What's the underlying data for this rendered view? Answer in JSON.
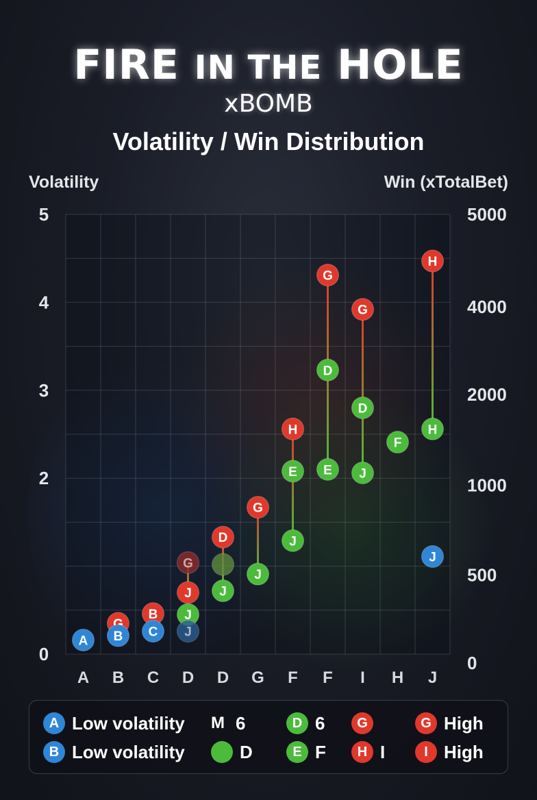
{
  "header": {
    "title_a": "FIRE",
    "title_b": "IN THE",
    "title_c": "HOLE",
    "subtitle": "xBOMB"
  },
  "colors": {
    "blue": "#2f86d6",
    "red": "#e0392b",
    "green": "#4cbb3c",
    "darkred": "#8e2c2c",
    "faded_green": "#5d8a3c",
    "faded_blue": "#2d5d92"
  },
  "chart_data": {
    "type": "scatter",
    "title": "Volatility / Win Distribution",
    "ylabel": "Volatility",
    "y2label": "Win (xTotalBet)",
    "categories": [
      "A",
      "B",
      "C",
      "D",
      "D",
      "G",
      "F",
      "F",
      "I",
      "H",
      "J"
    ],
    "ylim": [
      0,
      5
    ],
    "yticks": [
      "5",
      "4",
      "3",
      "2",
      "0"
    ],
    "ytick_values": [
      5,
      4,
      3,
      2,
      0
    ],
    "y2ticks": [
      "5000",
      "4000",
      "2000",
      "1000",
      "500",
      "0"
    ],
    "y2tick_values": [
      5,
      3.95,
      2.95,
      1.92,
      0.9,
      -0.1
    ],
    "grid": true,
    "points": [
      {
        "col": 0,
        "label": "A",
        "y": 0.16,
        "color": "blue"
      },
      {
        "col": 1,
        "label": "G",
        "y": 0.35,
        "color": "red"
      },
      {
        "col": 1,
        "label": "B",
        "y": 0.21,
        "color": "blue"
      },
      {
        "col": 2,
        "label": "B",
        "y": 0.46,
        "color": "red"
      },
      {
        "col": 2,
        "label": "C",
        "y": 0.26,
        "color": "blue"
      },
      {
        "col": 3,
        "label": "G",
        "y": 1.04,
        "color": "darkred"
      },
      {
        "col": 3,
        "label": "J",
        "y": 0.7,
        "color": "red"
      },
      {
        "col": 3,
        "label": "J",
        "y": 0.45,
        "color": "green"
      },
      {
        "col": 3,
        "label": "J",
        "y": 0.26,
        "color": "faded_blue"
      },
      {
        "col": 4,
        "label": "D",
        "y": 1.33,
        "color": "red"
      },
      {
        "col": 4,
        "label": "",
        "y": 1.02,
        "color": "faded_green"
      },
      {
        "col": 4,
        "label": "J",
        "y": 0.72,
        "color": "green"
      },
      {
        "col": 5,
        "label": "G",
        "y": 1.67,
        "color": "red"
      },
      {
        "col": 5,
        "label": "J",
        "y": 0.91,
        "color": "green"
      },
      {
        "col": 6,
        "label": "H",
        "y": 2.56,
        "color": "red"
      },
      {
        "col": 6,
        "label": "E",
        "y": 2.08,
        "color": "green"
      },
      {
        "col": 6,
        "label": "J",
        "y": 1.29,
        "color": "green"
      },
      {
        "col": 7,
        "label": "G",
        "y": 4.31,
        "color": "red"
      },
      {
        "col": 7,
        "label": "D",
        "y": 3.23,
        "color": "green"
      },
      {
        "col": 7,
        "label": "E",
        "y": 2.1,
        "color": "green"
      },
      {
        "col": 8,
        "label": "G",
        "y": 3.92,
        "color": "red"
      },
      {
        "col": 8,
        "label": "D",
        "y": 2.8,
        "color": "green"
      },
      {
        "col": 8,
        "label": "J",
        "y": 2.06,
        "color": "green"
      },
      {
        "col": 9,
        "label": "F",
        "y": 2.41,
        "color": "green"
      },
      {
        "col": 10,
        "label": "H",
        "y": 4.47,
        "color": "red"
      },
      {
        "col": 10,
        "label": "H",
        "y": 2.56,
        "color": "green"
      },
      {
        "col": 10,
        "label": "J",
        "y": 1.11,
        "color": "blue"
      }
    ],
    "connectors": [
      {
        "col": 3,
        "from": 1.04,
        "to": 0.7
      },
      {
        "col": 4,
        "from": 1.33,
        "to": 0.72
      },
      {
        "col": 5,
        "from": 1.67,
        "to": 0.91
      },
      {
        "col": 6,
        "from": 2.56,
        "to": 1.29
      },
      {
        "col": 7,
        "from": 4.31,
        "to": 2.1
      },
      {
        "col": 8,
        "from": 3.92,
        "to": 2.06
      },
      {
        "col": 10,
        "from": 4.47,
        "to": 2.56
      }
    ],
    "legend": [
      {
        "marker": "A",
        "color": "blue",
        "text": "Low volatility"
      },
      {
        "marker": "B",
        "color": "blue",
        "text": "Low volatility"
      },
      {
        "marker": "M",
        "color": "none",
        "text": "6"
      },
      {
        "marker": "",
        "color": "green",
        "text": "D"
      },
      {
        "marker": "D",
        "color": "green",
        "text": "6"
      },
      {
        "marker": "E",
        "color": "green",
        "text": "F"
      },
      {
        "marker": "G",
        "color": "red",
        "text": ""
      },
      {
        "marker": "H",
        "color": "red",
        "text": "I"
      },
      {
        "marker": "G",
        "color": "red",
        "text": "High"
      },
      {
        "marker": "I",
        "color": "red",
        "text": "High"
      }
    ]
  }
}
